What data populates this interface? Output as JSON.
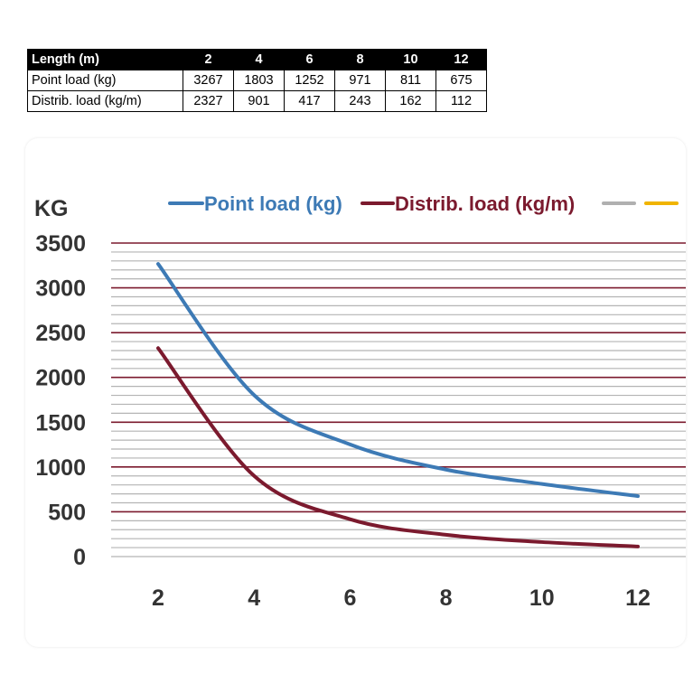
{
  "table": {
    "header": {
      "label": "Length (m)",
      "values": [
        "2",
        "4",
        "6",
        "8",
        "10",
        "12"
      ]
    },
    "rows": [
      {
        "label": "Point load (kg)",
        "values": [
          "3267",
          "1803",
          "1252",
          "971",
          "811",
          "675"
        ]
      },
      {
        "label": "Distrib. load (kg/m)",
        "values": [
          "2327",
          "901",
          "417",
          "243",
          "162",
          "112"
        ]
      }
    ]
  },
  "chart_data": {
    "type": "line",
    "title": "",
    "ylabel": "KG",
    "xlabel": "",
    "x": [
      2,
      4,
      6,
      8,
      10,
      12
    ],
    "xlim": [
      2,
      12
    ],
    "ylim": [
      0,
      3500
    ],
    "yticks": [
      0,
      500,
      1000,
      1500,
      2000,
      2500,
      3000,
      3500
    ],
    "xticks": [
      2,
      4,
      6,
      8,
      10,
      12
    ],
    "grid": true,
    "legend_position": "top",
    "series": [
      {
        "name": "Point load (kg)",
        "color": "#3d7ab5",
        "values": [
          3267,
          1803,
          1252,
          971,
          811,
          675
        ]
      },
      {
        "name": "Distrib. load (kg/m)",
        "color": "#7b1a2e",
        "values": [
          2327,
          901,
          417,
          243,
          162,
          112
        ]
      }
    ],
    "legend_extra_colors": [
      "#b0b0b0",
      "#f0b400"
    ],
    "major_grid_color": "#7b1a2e",
    "minor_grid_color": "#b4b4b4"
  }
}
